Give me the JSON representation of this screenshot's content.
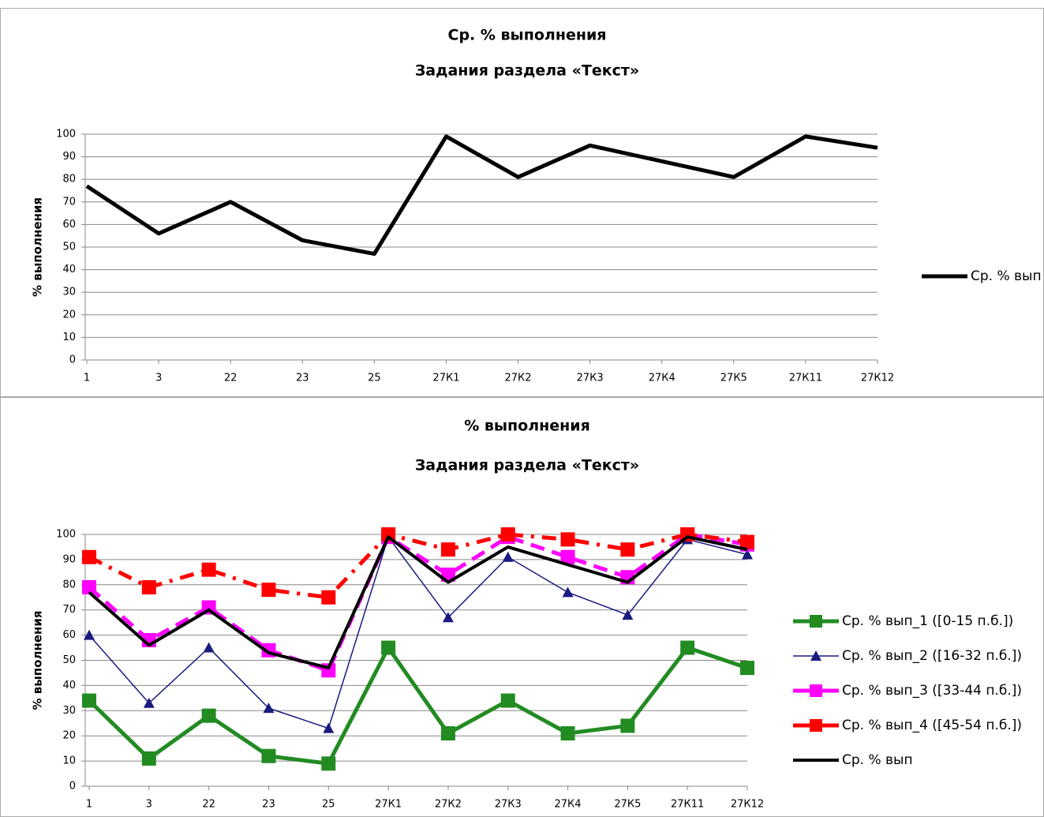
{
  "chart_data": [
    {
      "type": "line",
      "title": "Ср. % выполнения",
      "subtitle": "Задания раздела «Текст»",
      "y_label": "% выполнения",
      "categories": [
        "1",
        "3",
        "22",
        "23",
        "25",
        "27К1",
        "27К2",
        "27К3",
        "27К4",
        "27К5",
        "27К11",
        "27К12"
      ],
      "series": [
        {
          "name": "Ср. % вып",
          "color": "#000000",
          "width": 5,
          "marker": "none",
          "dash": "solid",
          "values": [
            77,
            56,
            70,
            53,
            47,
            99,
            81,
            95,
            88,
            81,
            99,
            94
          ]
        }
      ],
      "ylim": [
        0,
        100
      ],
      "yticks": [
        0,
        10,
        20,
        30,
        40,
        50,
        60,
        70,
        80,
        90,
        100
      ],
      "grid": true,
      "legend": "right"
    },
    {
      "type": "line",
      "title": "% выполнения",
      "subtitle": "Задания раздела «Текст»",
      "y_label": "% выполнения",
      "categories": [
        "1",
        "3",
        "22",
        "23",
        "25",
        "27К1",
        "27К2",
        "27К3",
        "27К4",
        "27К5",
        "27К11",
        "27К12"
      ],
      "series": [
        {
          "name": "Ср. % вып_1 ([0-15 п.б.])",
          "color": "#228b22",
          "width": 5,
          "marker": "square",
          "dash": "solid",
          "values": [
            34,
            11,
            28,
            12,
            9,
            55,
            21,
            34,
            21,
            24,
            55,
            47
          ]
        },
        {
          "name": "Ср. % вып_2 ([16-32 п.б.])",
          "color": "#1a1a80",
          "width": 1.5,
          "marker": "triangle",
          "dash": "solid",
          "values": [
            60,
            33,
            55,
            31,
            23,
            99,
            67,
            91,
            77,
            68,
            98,
            92
          ]
        },
        {
          "name": "Ср. % вып_3 ([33-44 п.б.])",
          "color": "#ff00ff",
          "width": 5,
          "marker": "square",
          "dash": "dash",
          "values": [
            79,
            58,
            71,
            54,
            46,
            99,
            84,
            99,
            91,
            83,
            100,
            96
          ]
        },
        {
          "name": "Ср. % вып_4 ([45-54 п.б.])",
          "color": "#ff0000",
          "width": 5,
          "marker": "square",
          "dash": "dash-dot",
          "values": [
            91,
            79,
            86,
            78,
            75,
            100,
            94,
            100,
            98,
            94,
            100,
            97
          ]
        },
        {
          "name": "Ср. % вып",
          "color": "#000000",
          "width": 4,
          "marker": "none",
          "dash": "solid",
          "values": [
            77,
            56,
            70,
            53,
            47,
            99,
            81,
            95,
            88,
            81,
            99,
            94
          ]
        }
      ],
      "ylim": [
        0,
        100
      ],
      "yticks": [
        0,
        10,
        20,
        30,
        40,
        50,
        60,
        70,
        80,
        90,
        100
      ],
      "grid": true,
      "legend": "right"
    }
  ]
}
